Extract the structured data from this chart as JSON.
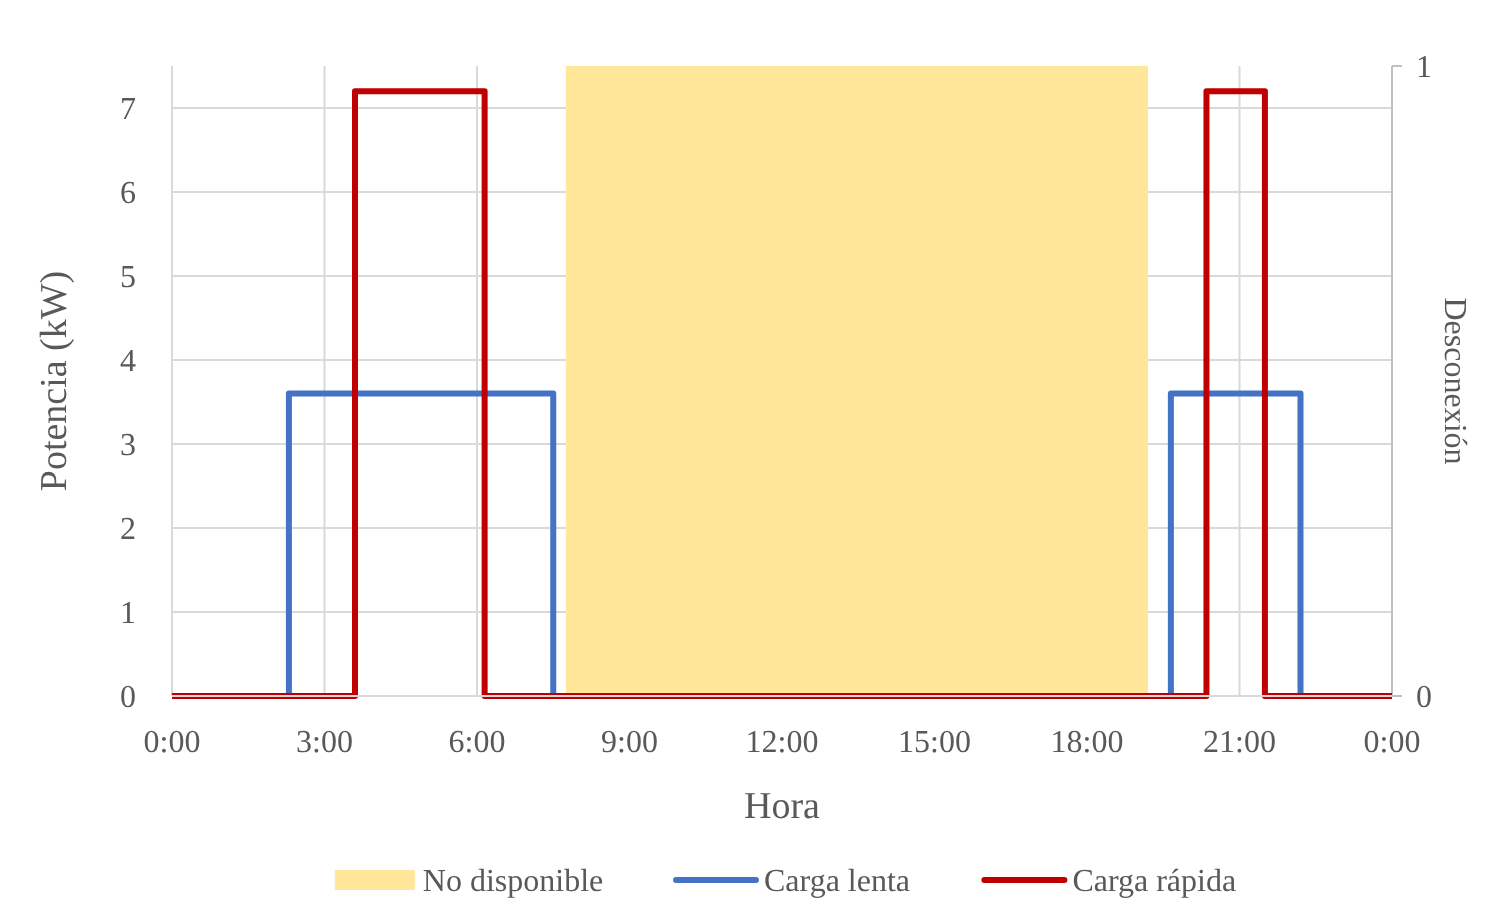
{
  "chart_data": {
    "type": "step",
    "xlabel": "Hora",
    "ylabel": "Potencia (kW)",
    "y2label": "Desconexión",
    "xlim": [
      0,
      24
    ],
    "xticks": [
      {
        "value": 0,
        "label": "0:00"
      },
      {
        "value": 3,
        "label": "3:00"
      },
      {
        "value": 6,
        "label": "6:00"
      },
      {
        "value": 9,
        "label": "9:00"
      },
      {
        "value": 12,
        "label": "12:00"
      },
      {
        "value": 15,
        "label": "15:00"
      },
      {
        "value": 18,
        "label": "18:00"
      },
      {
        "value": 21,
        "label": "21:00"
      },
      {
        "value": 24,
        "label": "0:00"
      }
    ],
    "ylim": [
      0,
      7.5
    ],
    "yticks": [
      0,
      1,
      2,
      3,
      4,
      5,
      6,
      7
    ],
    "y2lim": [
      0,
      1
    ],
    "y2ticks": [
      0,
      1
    ],
    "grid": true,
    "legend": "bottom",
    "bands": [
      {
        "axis": "x",
        "from": 7.75,
        "to": 19.2,
        "label": "No disponible",
        "color": "#ffe699"
      }
    ],
    "series": [
      {
        "name": "Carga lenta",
        "color": "#4472c4",
        "x": [
          0,
          2.3,
          7.5,
          19.65,
          22.2,
          24
        ],
        "values": [
          0,
          3.6,
          0,
          3.6,
          0,
          0
        ]
      },
      {
        "name": "Carga rápida",
        "color": "#c00000",
        "x": [
          0,
          3.6,
          6.15,
          20.35,
          21.5,
          24
        ],
        "values": [
          0,
          7.2,
          0,
          7.2,
          0,
          0
        ]
      }
    ]
  }
}
